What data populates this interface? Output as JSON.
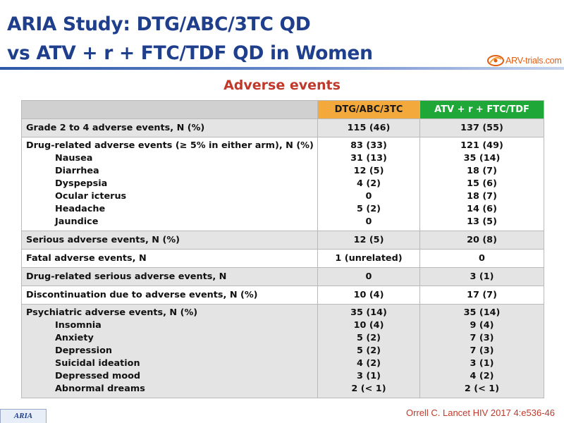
{
  "slide": {
    "title_line1": "ARIA Study: DTG/ABC/3TC QD",
    "title_line2": "vs ATV + r + FTC/TDF QD in Women",
    "subtitle": "Adverse events",
    "logo_text": "ARV-trials.com",
    "footer_tag": "ARIA",
    "citation": "Orrell C. Lancet HIV 2017 4:e536-46",
    "colors": {
      "title": "#1f3f8c",
      "accent_red": "#c0392b",
      "dtg_header": "#f4a93c",
      "atv_header": "#1fa838",
      "row_grey": "#e4e4e4"
    }
  },
  "table": {
    "columns": [
      "DTG/ABC/3TC",
      "ATV + r + FTC/TDF"
    ],
    "rows": [
      {
        "labels": [
          "Grade 2 to 4 adverse events, N (%)"
        ],
        "dtg": [
          "115 (46)"
        ],
        "atv": [
          "137 (55)"
        ]
      },
      {
        "labels": [
          "Drug-related adverse events (≥ 5% in either arm), N (%)",
          "Nausea",
          "Diarrhea",
          "Dyspepsia",
          "Ocular icterus",
          "Headache",
          "Jaundice"
        ],
        "dtg": [
          "83 (33)",
          "31 (13)",
          "12 (5)",
          "4 (2)",
          "0",
          "5 (2)",
          "0"
        ],
        "atv": [
          "121 (49)",
          "35 (14)",
          "18 (7)",
          "15 (6)",
          "18 (7)",
          "14 (6)",
          "13 (5)"
        ]
      },
      {
        "labels": [
          "Serious adverse events, N (%)"
        ],
        "dtg": [
          "12 (5)"
        ],
        "atv": [
          "20 (8)"
        ]
      },
      {
        "labels": [
          "Fatal adverse events, N"
        ],
        "dtg": [
          "1 (unrelated)"
        ],
        "atv": [
          "0"
        ]
      },
      {
        "labels": [
          "Drug-related serious adverse events, N"
        ],
        "dtg": [
          "0"
        ],
        "atv": [
          "3 (1)"
        ]
      },
      {
        "labels": [
          "Discontinuation due to adverse events, N (%)"
        ],
        "dtg": [
          "10 (4)"
        ],
        "atv": [
          "17 (7)"
        ]
      },
      {
        "labels": [
          "Psychiatric adverse events, N (%)",
          "Insomnia",
          "Anxiety",
          "Depression",
          "Suicidal ideation",
          "Depressed mood",
          "Abnormal dreams"
        ],
        "dtg": [
          "35 (14)",
          "10 (4)",
          "5 (2)",
          "5 (2)",
          "4 (2)",
          "3 (1)",
          "2 (< 1)"
        ],
        "atv": [
          "35 (14)",
          "9 (4)",
          "7 (3)",
          "7 (3)",
          "3 (1)",
          "4 (2)",
          "2 (< 1)"
        ]
      }
    ]
  }
}
